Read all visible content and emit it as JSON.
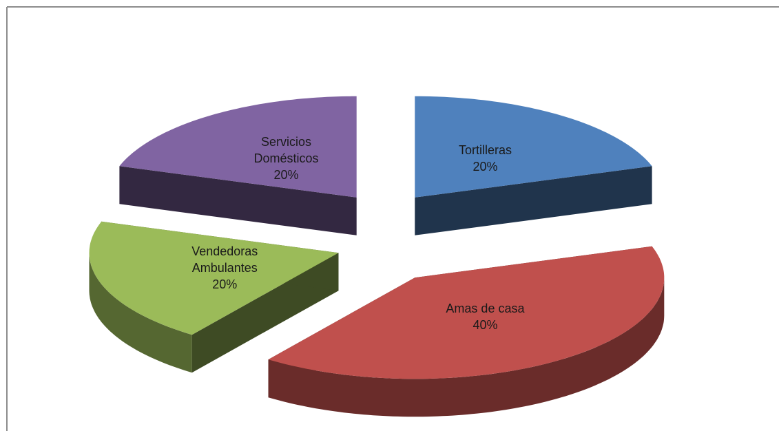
{
  "chart_data": {
    "type": "pie",
    "categories": [
      "Tortilleras",
      "Amas de casa",
      "Vendedoras Ambulantes",
      "Servicios Domésticos"
    ],
    "values": [
      20,
      40,
      20,
      20
    ],
    "value_labels": [
      "20%",
      "40%",
      "20%",
      "20%"
    ],
    "colors": [
      "#4f81bd",
      "#c0504d",
      "#9bbb59",
      "#8064a2"
    ]
  }
}
